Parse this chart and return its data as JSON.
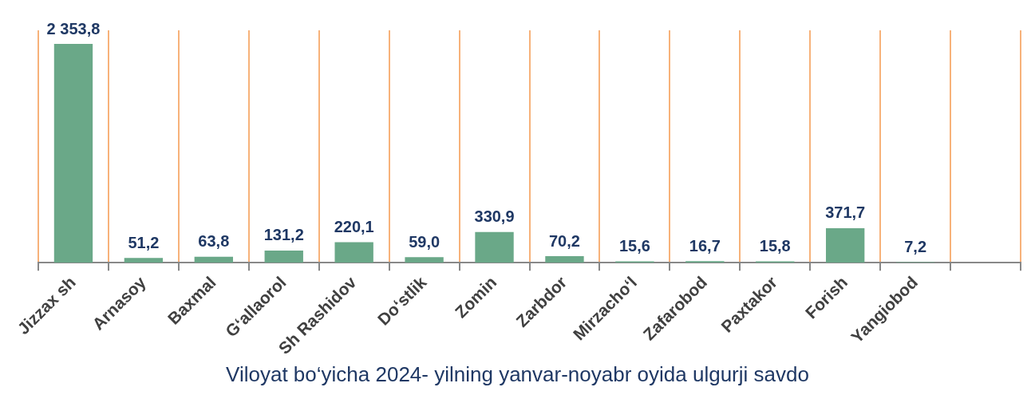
{
  "chart_data": {
    "type": "bar",
    "categories": [
      "Jizzax sh",
      "Arnasoy",
      "Baxmal",
      "G‘allaorol",
      "Sh Rashidov",
      "Do‘stlik",
      "Zomin",
      "Zarbdor",
      "Mirzacho‘l",
      "Zafarobod",
      "Paxtakor",
      "Forish",
      "Yangiobod",
      null
    ],
    "values": [
      2353.8,
      51.2,
      63.8,
      131.2,
      220.1,
      59.0,
      330.9,
      70.2,
      15.6,
      16.7,
      15.8,
      371.7,
      7.2,
      null
    ],
    "value_labels": [
      "2 353,8",
      "51,2",
      "63,8",
      "131,2",
      "220,1",
      "59,0",
      "330,9",
      "70,2",
      "15,6",
      "16,7",
      "15,8",
      "371,7",
      "7,2",
      null
    ],
    "color": "#6aa888",
    "grid": "x",
    "legend": false,
    "annotations": [
      "Viloyat bo‘yicha 2024- yilning yanvar-noyabr oyida ulgurji savdo"
    ]
  }
}
